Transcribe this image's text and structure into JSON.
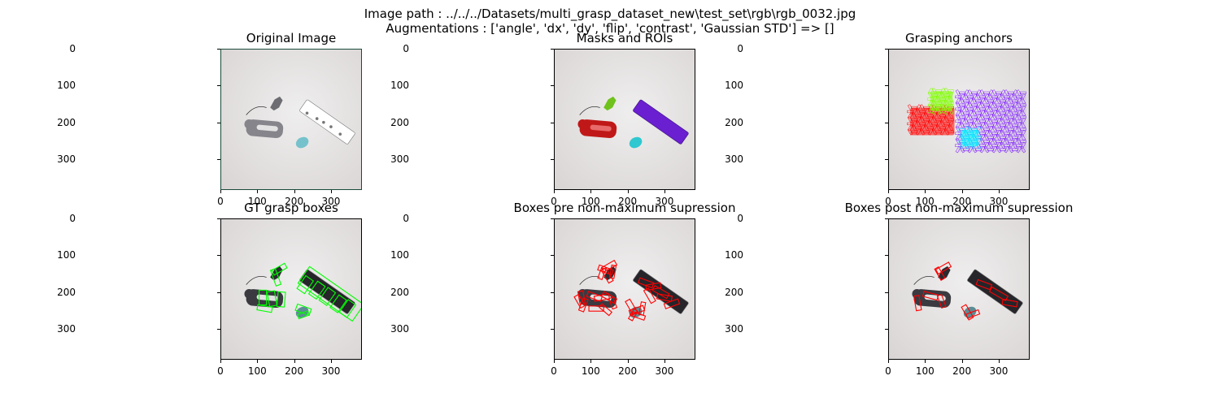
{
  "figure": {
    "suptitle_line1": "Image path : ../../../Datasets/multi_grasp_dataset_new\\test_set\\rgb\\rgb_0032.jpg",
    "suptitle_line2": "Augmentations : ['angle', 'dx', 'dy', 'flip', 'contrast', 'Gaussian STD'] => []"
  },
  "axes": {
    "xticks": [
      "0",
      "100",
      "200",
      "300"
    ],
    "yticks": [
      "0",
      "100",
      "200",
      "300"
    ],
    "xlim": [
      0,
      384
    ],
    "ylim": [
      384,
      0
    ]
  },
  "panels": [
    {
      "id": "original",
      "title": "Original Image"
    },
    {
      "id": "masks",
      "title": "Masks and ROIs"
    },
    {
      "id": "anchors",
      "title": "Grasping anchors"
    },
    {
      "id": "gt",
      "title": "GT grasp boxes"
    },
    {
      "id": "pre",
      "title": "Boxes pre non-maximum supression"
    },
    {
      "id": "post",
      "title": "Boxes post non-maximum supression"
    }
  ],
  "colors": {
    "gt_box": "#00ff00",
    "pred_box": "#ff0000",
    "mask_stapler": "#c01818",
    "mask_toy": "#6fc21c",
    "mask_ball": "#2fc8d0",
    "mask_roller": "#6a1fd0",
    "anchor_red": "#ff0000",
    "anchor_green": "#80ff00",
    "anchor_cyan": "#00ffff",
    "anchor_purple": "#8020ff"
  }
}
